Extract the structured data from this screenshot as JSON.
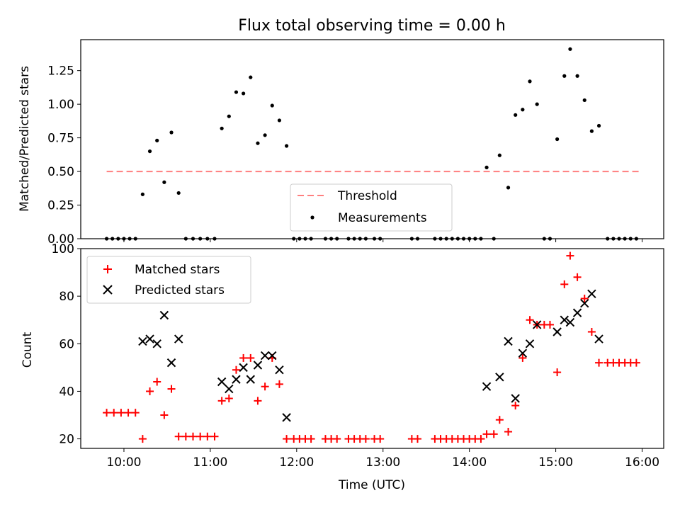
{
  "chart_data": [
    {
      "type": "scatter",
      "title": "Flux total observing time = 0.00 h",
      "ylabel": "Matched/Predicted stars",
      "xlabel": "",
      "xlim": [
        "09:30",
        "16:15"
      ],
      "ylim": [
        0,
        1.48
      ],
      "yticks": [
        "0.00",
        "0.25",
        "0.50",
        "0.75",
        "1.00",
        "1.25"
      ],
      "threshold": {
        "name": "Threshold",
        "value": 0.5,
        "x_start": "09:48",
        "x_end": "15:59",
        "color": "#ff7f7f"
      },
      "series": [
        {
          "name": "Measurements",
          "color": "#000000",
          "points": [
            [
              "09:48",
              0
            ],
            [
              "09:52",
              0
            ],
            [
              "09:56",
              0
            ],
            [
              "10:00",
              0
            ],
            [
              "10:04",
              0
            ],
            [
              "10:08",
              0.0
            ],
            [
              "10:13",
              0.33
            ],
            [
              "10:18",
              0.65
            ],
            [
              "10:23",
              0.73
            ],
            [
              "10:28",
              0.42
            ],
            [
              "10:33",
              0.79
            ],
            [
              "10:38",
              0.34
            ],
            [
              "10:43",
              0
            ],
            [
              "10:48",
              0
            ],
            [
              "10:53",
              0
            ],
            [
              "10:58",
              0
            ],
            [
              "11:03",
              0
            ],
            [
              "11:08",
              0.82
            ],
            [
              "11:13",
              0.91
            ],
            [
              "11:18",
              1.09
            ],
            [
              "11:23",
              1.08
            ],
            [
              "11:28",
              1.2
            ],
            [
              "11:33",
              0.71
            ],
            [
              "11:38",
              0.77
            ],
            [
              "11:43",
              0.99
            ],
            [
              "11:48",
              0.88
            ],
            [
              "11:53",
              0.69
            ],
            [
              "11:58",
              0
            ],
            [
              "12:02",
              0
            ],
            [
              "12:06",
              0
            ],
            [
              "12:10",
              0
            ],
            [
              "12:20",
              0
            ],
            [
              "12:24",
              0
            ],
            [
              "12:28",
              0
            ],
            [
              "12:36",
              0
            ],
            [
              "12:40",
              0
            ],
            [
              "12:44",
              0
            ],
            [
              "12:48",
              0
            ],
            [
              "12:54",
              0
            ],
            [
              "12:58",
              0
            ],
            [
              "13:20",
              0
            ],
            [
              "13:24",
              0
            ],
            [
              "13:36",
              0
            ],
            [
              "13:40",
              0
            ],
            [
              "13:44",
              0
            ],
            [
              "13:48",
              0
            ],
            [
              "13:52",
              0
            ],
            [
              "13:56",
              0
            ],
            [
              "14:00",
              0
            ],
            [
              "14:04",
              0
            ],
            [
              "14:08",
              0
            ],
            [
              "14:12",
              0.53
            ],
            [
              "14:17",
              0
            ],
            [
              "14:21",
              0.62
            ],
            [
              "14:27",
              0.38
            ],
            [
              "14:32",
              0.92
            ],
            [
              "14:37",
              0.96
            ],
            [
              "14:42",
              1.17
            ],
            [
              "14:47",
              1.0
            ],
            [
              "14:52",
              0
            ],
            [
              "14:56",
              0
            ],
            [
              "15:01",
              0.74
            ],
            [
              "15:06",
              1.21
            ],
            [
              "15:10",
              1.41
            ],
            [
              "15:15",
              1.21
            ],
            [
              "15:20",
              1.03
            ],
            [
              "15:25",
              0.8
            ],
            [
              "15:30",
              0.84
            ],
            [
              "15:36",
              0
            ],
            [
              "15:40",
              0
            ],
            [
              "15:44",
              0
            ],
            [
              "15:48",
              0
            ],
            [
              "15:52",
              0
            ],
            [
              "15:56",
              0
            ]
          ]
        }
      ],
      "legend": {
        "placement": "bottom-center"
      }
    },
    {
      "type": "scatter",
      "title": "",
      "ylabel": "Count",
      "xlabel": "Time (UTC)",
      "xlim": [
        "09:30",
        "16:15"
      ],
      "ylim": [
        16,
        100
      ],
      "yticks": [
        "20",
        "40",
        "60",
        "80",
        "100"
      ],
      "xticks": [
        "10:00",
        "11:00",
        "12:00",
        "13:00",
        "14:00",
        "15:00",
        "16:00"
      ],
      "series": [
        {
          "name": "Matched stars",
          "color": "#ff0000",
          "marker": "plus",
          "points": [
            [
              "09:48",
              31
            ],
            [
              "09:53",
              31
            ],
            [
              "09:58",
              31
            ],
            [
              "10:03",
              31
            ],
            [
              "10:08",
              31
            ],
            [
              "10:13",
              20
            ],
            [
              "10:18",
              40
            ],
            [
              "10:23",
              44
            ],
            [
              "10:28",
              30
            ],
            [
              "10:33",
              41
            ],
            [
              "10:38",
              21
            ],
            [
              "10:43",
              21
            ],
            [
              "10:48",
              21
            ],
            [
              "10:53",
              21
            ],
            [
              "10:58",
              21
            ],
            [
              "11:03",
              21
            ],
            [
              "11:08",
              36
            ],
            [
              "11:13",
              37
            ],
            [
              "11:18",
              49
            ],
            [
              "11:23",
              54
            ],
            [
              "11:28",
              54
            ],
            [
              "11:33",
              36
            ],
            [
              "11:38",
              42
            ],
            [
              "11:43",
              54
            ],
            [
              "11:48",
              43
            ],
            [
              "11:53",
              20
            ],
            [
              "11:58",
              20
            ],
            [
              "12:02",
              20
            ],
            [
              "12:06",
              20
            ],
            [
              "12:10",
              20
            ],
            [
              "12:20",
              20
            ],
            [
              "12:24",
              20
            ],
            [
              "12:28",
              20
            ],
            [
              "12:36",
              20
            ],
            [
              "12:40",
              20
            ],
            [
              "12:44",
              20
            ],
            [
              "12:48",
              20
            ],
            [
              "12:54",
              20
            ],
            [
              "12:58",
              20
            ],
            [
              "13:20",
              20
            ],
            [
              "13:24",
              20
            ],
            [
              "13:36",
              20
            ],
            [
              "13:40",
              20
            ],
            [
              "13:44",
              20
            ],
            [
              "13:48",
              20
            ],
            [
              "13:52",
              20
            ],
            [
              "13:56",
              20
            ],
            [
              "14:00",
              20
            ],
            [
              "14:04",
              20
            ],
            [
              "14:08",
              20
            ],
            [
              "14:12",
              22
            ],
            [
              "14:17",
              22
            ],
            [
              "14:21",
              28
            ],
            [
              "14:27",
              23
            ],
            [
              "14:32",
              34
            ],
            [
              "14:37",
              54
            ],
            [
              "14:42",
              70
            ],
            [
              "14:47",
              68
            ],
            [
              "14:52",
              68
            ],
            [
              "14:56",
              68
            ],
            [
              "15:01",
              48
            ],
            [
              "15:06",
              85
            ],
            [
              "15:10",
              97
            ],
            [
              "15:15",
              88
            ],
            [
              "15:20",
              79
            ],
            [
              "15:25",
              65
            ],
            [
              "15:30",
              52
            ],
            [
              "15:36",
              52
            ],
            [
              "15:40",
              52
            ],
            [
              "15:44",
              52
            ],
            [
              "15:48",
              52
            ],
            [
              "15:52",
              52
            ],
            [
              "15:56",
              52
            ]
          ]
        },
        {
          "name": "Predicted stars",
          "color": "#000000",
          "marker": "x",
          "points": [
            [
              "10:13",
              61
            ],
            [
              "10:18",
              62
            ],
            [
              "10:23",
              60
            ],
            [
              "10:28",
              72
            ],
            [
              "10:33",
              52
            ],
            [
              "10:38",
              62
            ],
            [
              "11:08",
              44
            ],
            [
              "11:13",
              41
            ],
            [
              "11:18",
              45
            ],
            [
              "11:23",
              50
            ],
            [
              "11:28",
              45
            ],
            [
              "11:33",
              51
            ],
            [
              "11:38",
              55
            ],
            [
              "11:43",
              55
            ],
            [
              "11:48",
              49
            ],
            [
              "11:53",
              29
            ],
            [
              "14:12",
              42
            ],
            [
              "14:21",
              46
            ],
            [
              "14:27",
              61
            ],
            [
              "14:32",
              37
            ],
            [
              "14:37",
              56
            ],
            [
              "14:42",
              60
            ],
            [
              "14:47",
              68
            ],
            [
              "15:01",
              65
            ],
            [
              "15:06",
              70
            ],
            [
              "15:10",
              69
            ],
            [
              "15:15",
              73
            ],
            [
              "15:20",
              77
            ],
            [
              "15:25",
              81
            ],
            [
              "15:30",
              62
            ]
          ]
        }
      ],
      "legend": {
        "placement": "top-left"
      }
    }
  ]
}
